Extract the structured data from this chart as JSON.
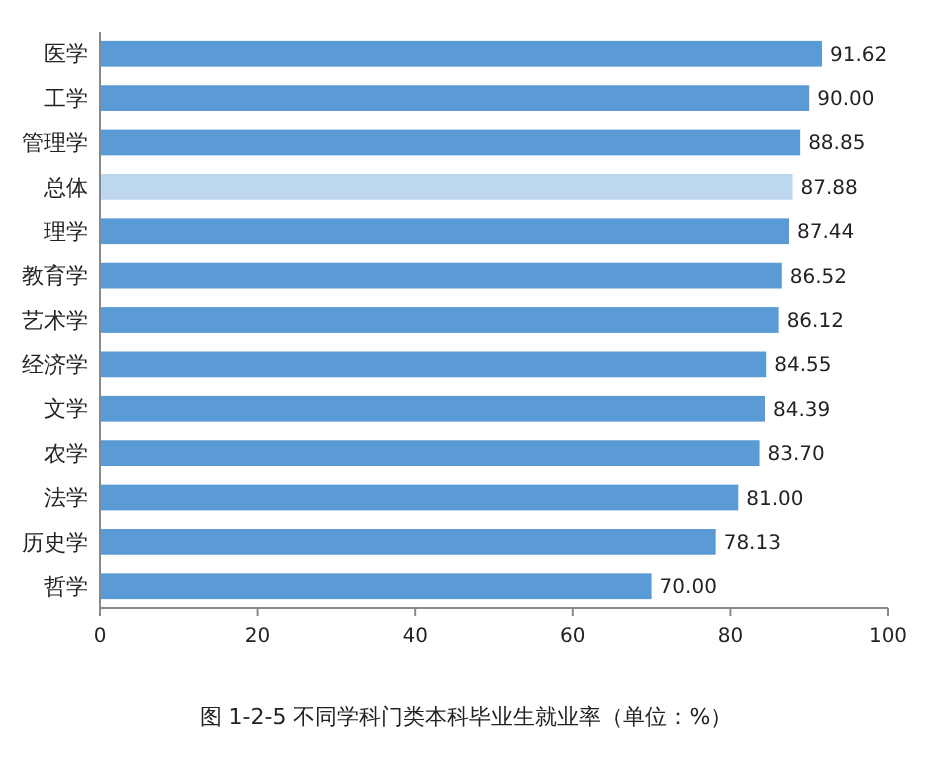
{
  "chart_data": {
    "type": "bar",
    "orientation": "horizontal",
    "title": "图 1-2-5  不同学科门类本科毕业生就业率（单位：%）",
    "categories": [
      "医学",
      "工学",
      "管理学",
      "总体",
      "理学",
      "教育学",
      "艺术学",
      "经济学",
      "文学",
      "农学",
      "法学",
      "历史学",
      "哲学"
    ],
    "values": [
      91.62,
      90.0,
      88.85,
      87.88,
      87.44,
      86.52,
      86.12,
      84.55,
      84.39,
      83.7,
      81.0,
      78.13,
      70.0
    ],
    "value_labels": [
      "91.62",
      "90.00",
      "88.85",
      "87.88",
      "87.44",
      "86.52",
      "86.12",
      "84.55",
      "84.39",
      "83.70",
      "81.00",
      "78.13",
      "70.00"
    ],
    "colors": [
      "#5b9bd5",
      "#5b9bd5",
      "#5b9bd5",
      "#bdd7ee",
      "#5b9bd5",
      "#5b9bd5",
      "#5b9bd5",
      "#5b9bd5",
      "#5b9bd5",
      "#5b9bd5",
      "#5b9bd5",
      "#5b9bd5",
      "#5b9bd5"
    ],
    "xlim": [
      0,
      100
    ],
    "xticks": [
      0,
      20,
      40,
      60,
      80,
      100
    ],
    "grid": false
  }
}
